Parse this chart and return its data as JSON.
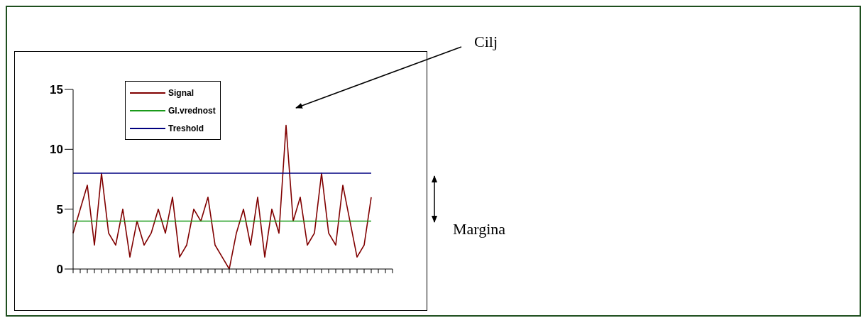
{
  "chart_data": {
    "type": "line",
    "categories": [
      null,
      null,
      null,
      null,
      null,
      null,
      null,
      null,
      null,
      null,
      null,
      null,
      null,
      null,
      null,
      null,
      null,
      null,
      null,
      null,
      null,
      null,
      null,
      null,
      null,
      null,
      null,
      null,
      null,
      null,
      null,
      null,
      null,
      null,
      null,
      null,
      null,
      null,
      null,
      null,
      null,
      null,
      null,
      null,
      null,
      null
    ],
    "series": [
      {
        "name": "Signal",
        "color": "#800000",
        "values": [
          3,
          5,
          7,
          2,
          8,
          3,
          2,
          5,
          1,
          4,
          2,
          3,
          5,
          3,
          6,
          1,
          2,
          5,
          4,
          6,
          2,
          1,
          0,
          3,
          5,
          2,
          6,
          1,
          5,
          3,
          12,
          4,
          6,
          2,
          3,
          8,
          3,
          2,
          7,
          4,
          1,
          2,
          6,
          null,
          null,
          null
        ]
      },
      {
        "name": "Gl.vrednost",
        "color": "#1a9a1a",
        "values": [
          4,
          4,
          4,
          4,
          4,
          4,
          4,
          4,
          4,
          4,
          4,
          4,
          4,
          4,
          4,
          4,
          4,
          4,
          4,
          4,
          4,
          4,
          4,
          4,
          4,
          4,
          4,
          4,
          4,
          4,
          4,
          4,
          4,
          4,
          4,
          4,
          4,
          4,
          4,
          4,
          4,
          4,
          4,
          null,
          null,
          null
        ]
      },
      {
        "name": "Treshold",
        "color": "#000080",
        "values": [
          8,
          8,
          8,
          8,
          8,
          8,
          8,
          8,
          8,
          8,
          8,
          8,
          8,
          8,
          8,
          8,
          8,
          8,
          8,
          8,
          8,
          8,
          8,
          8,
          8,
          8,
          8,
          8,
          8,
          8,
          8,
          8,
          8,
          8,
          8,
          8,
          8,
          8,
          8,
          8,
          8,
          8,
          8,
          null,
          null,
          null
        ]
      }
    ],
    "ylim": [
      0,
      15
    ],
    "yticks": [
      0,
      5,
      10,
      15
    ],
    "grid": false,
    "legend": "top left",
    "tick_labels": "y",
    "marker": "none",
    "line_style": "solid",
    "annotations": [
      "Cilj",
      "Margina"
    ]
  }
}
